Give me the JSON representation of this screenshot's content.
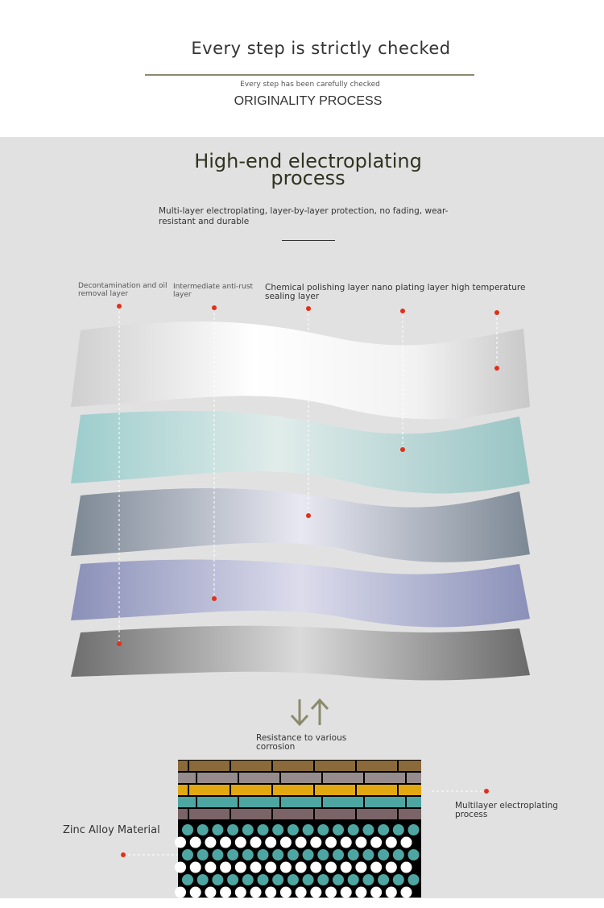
{
  "header": {
    "title": "Every step is strictly checked",
    "subtitle": "Every step has been carefully checked",
    "section": "ORIGINALITY PROCESS"
  },
  "main": {
    "heading_line1": "High-end electroplating",
    "heading_line2": "process",
    "description": "Multi-layer electroplating, layer-by-layer protection, no fading, wear-resistant and durable",
    "layer_labels": [
      "Decontamination and oil removal layer",
      "Intermediate anti-rust layer",
      "Chemical polishing layer nano plating layer high temperature sealing layer"
    ],
    "arrows_icon": "up-down-arrows-icon",
    "resistance": "Resistance to various corrosion",
    "zinc_label": "Zinc Alloy Material",
    "multilayer_label": "Multilayer electroplating process"
  },
  "colors": {
    "marker": "#e0301a",
    "background": "#e1e1e1",
    "accent_rule": "#8b8a6e"
  }
}
